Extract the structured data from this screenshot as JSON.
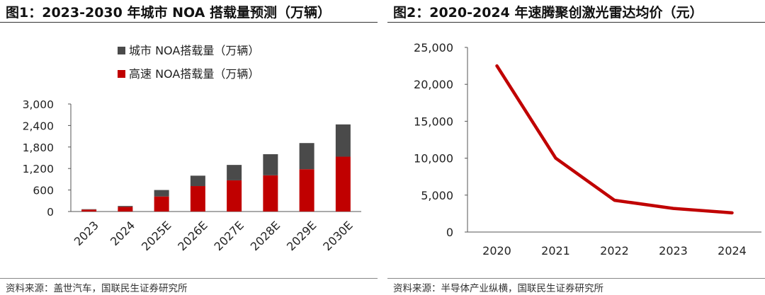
{
  "charts": [
    {
      "title": "图1：2023-2030 年城市 NOA 搭载量预测（万辆）",
      "source": "资料来源：盖世汽车，国联民生证券研究所",
      "chart_data": {
        "type": "bar",
        "stacked": true,
        "categories": [
          "2023",
          "2024",
          "2025E",
          "2026E",
          "2027E",
          "2028E",
          "2029E",
          "2030E"
        ],
        "series": [
          {
            "name": "高速 NOA搭载量（万辆）",
            "color": "#c00000",
            "values": [
              55,
              130,
              420,
              710,
              870,
              1010,
              1180,
              1530
            ]
          },
          {
            "name": "城市 NOA搭载量（万辆）",
            "color": "#4a4a4a",
            "values": [
              10,
              25,
              180,
              290,
              430,
              590,
              730,
              900
            ]
          }
        ],
        "yticks": [
          "0",
          "600",
          "1,200",
          "1,800",
          "2,400",
          "3,000"
        ],
        "ylim": [
          0,
          3000
        ],
        "legend": "top",
        "grid": false
      }
    },
    {
      "title": "图2：2020-2024 年速腾聚创激光雷达均价（元）",
      "source": "资料来源：半导体产业纵横，国联民生证券研究所",
      "chart_data": {
        "type": "line",
        "x": [
          "2020",
          "2021",
          "2022",
          "2023",
          "2024"
        ],
        "series": [
          {
            "color": "#c00000",
            "values": [
              22500,
              10000,
              4300,
              3200,
              2600
            ]
          }
        ],
        "yticks": [
          "0",
          "5,000",
          "10,000",
          "15,000",
          "20,000",
          "25,000"
        ],
        "ylim": [
          0,
          25000
        ],
        "grid": false
      }
    }
  ]
}
